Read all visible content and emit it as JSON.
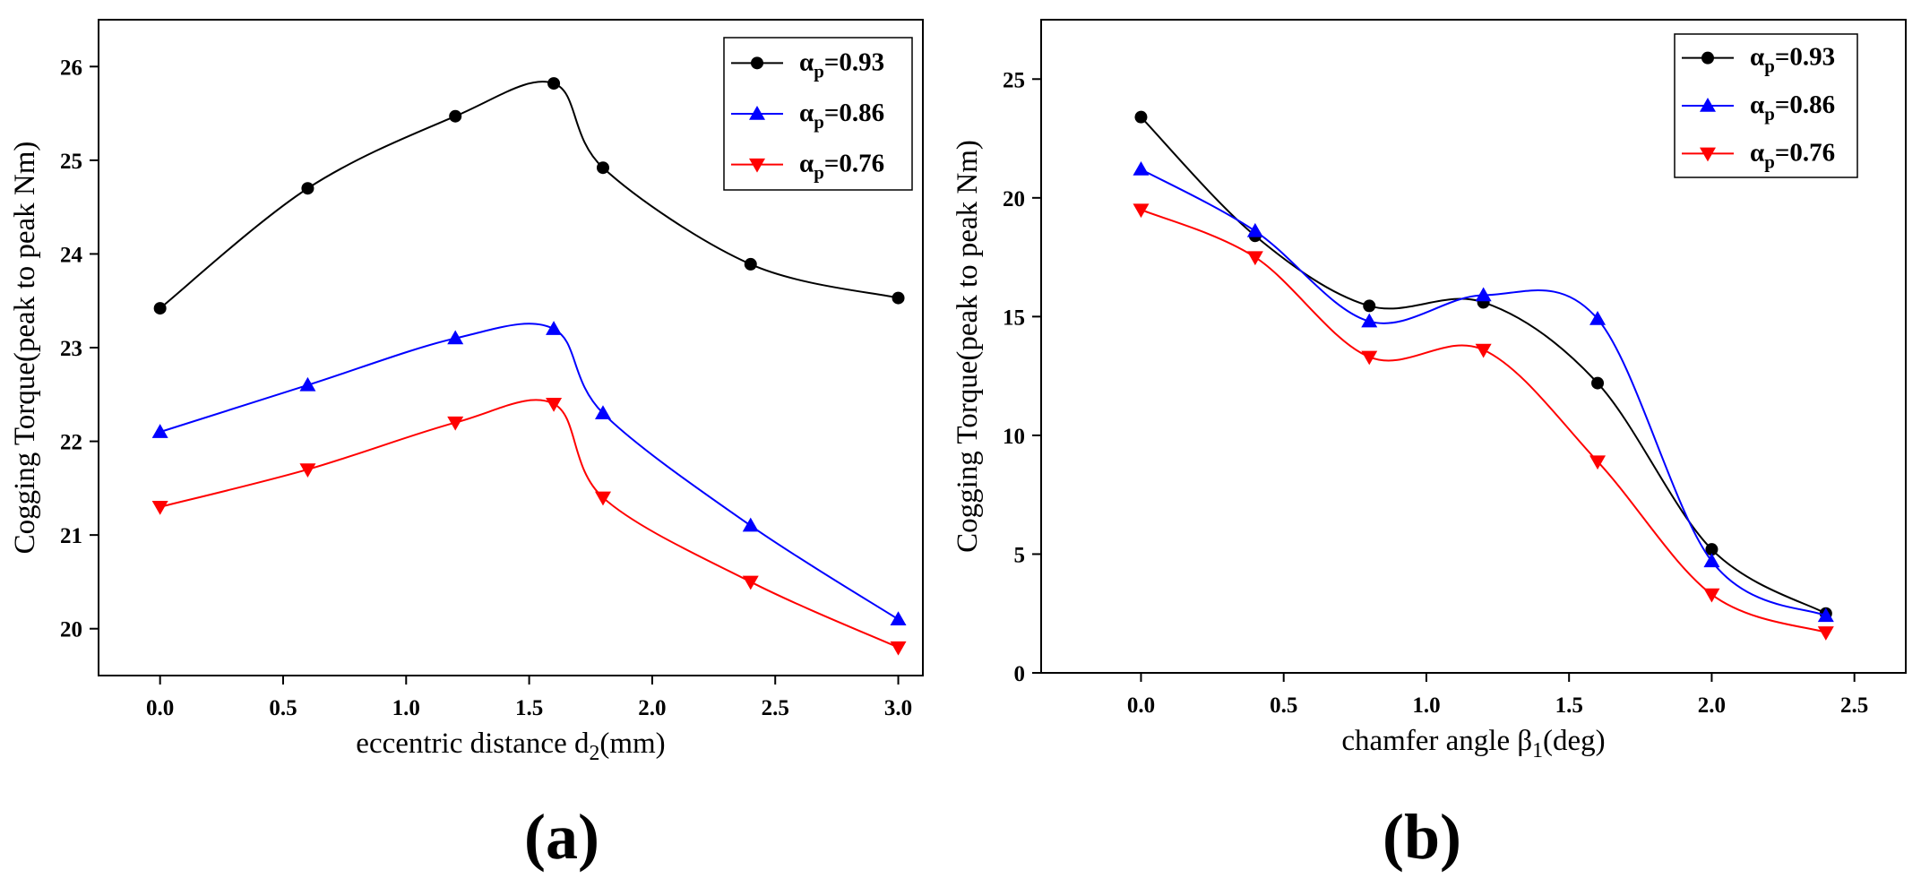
{
  "chart_data": [
    {
      "type": "line",
      "panel_label": "(a)",
      "xlabel": {
        "main": "eccentric distance d",
        "sub": "2",
        "tail": "(mm)"
      },
      "ylabel": "Cogging Torque(peak to peak Nm)",
      "xlim": [
        -0.25,
        3.1
      ],
      "ylim": [
        19.5,
        26.5
      ],
      "xticks": [
        0.0,
        0.5,
        1.0,
        1.5,
        2.0,
        2.5,
        3.0
      ],
      "xtick_labels": [
        "0.0",
        "0.5",
        "1.0",
        "1.5",
        "2.0",
        "2.5",
        "3.0"
      ],
      "yticks": [
        20,
        21,
        22,
        23,
        24,
        25,
        26
      ],
      "ytick_labels": [
        "20",
        "21",
        "22",
        "23",
        "24",
        "25",
        "26"
      ],
      "legend_position": "top-right",
      "series": [
        {
          "name": "α_p=0.93",
          "legend": {
            "main": "α",
            "sub": "p",
            "tail": "=0.93"
          },
          "color": "#000000",
          "marker": "circle",
          "x": [
            0,
            0.6,
            1.2,
            1.6,
            1.8,
            2.4,
            3.0
          ],
          "y": [
            23.42,
            24.7,
            25.47,
            25.82,
            24.92,
            23.89,
            23.53
          ]
        },
        {
          "name": "α_p=0.86",
          "legend": {
            "main": "α",
            "sub": "p",
            "tail": "=0.86"
          },
          "color": "#0000ff",
          "marker": "triangle-up",
          "x": [
            0,
            0.6,
            1.2,
            1.6,
            1.8,
            2.4,
            3.0
          ],
          "y": [
            22.1,
            22.6,
            23.1,
            23.2,
            22.3,
            21.1,
            20.1
          ]
        },
        {
          "name": "α_p=0.76",
          "legend": {
            "main": "α",
            "sub": "p",
            "tail": "=0.76"
          },
          "color": "#ff0000",
          "marker": "triangle-down",
          "x": [
            0,
            0.6,
            1.2,
            1.6,
            1.8,
            2.4,
            3.0
          ],
          "y": [
            21.3,
            21.7,
            22.2,
            22.4,
            21.4,
            20.5,
            19.8
          ]
        }
      ]
    },
    {
      "type": "line",
      "panel_label": "(b)",
      "xlabel": {
        "main": "chamfer angle β",
        "sub": "1",
        "tail": "(deg)"
      },
      "ylabel": "Cogging Torque(peak to peak Nm)",
      "xlim": [
        -0.35,
        2.68
      ],
      "ylim": [
        0,
        27.5
      ],
      "xticks": [
        0.0,
        0.5,
        1.0,
        1.5,
        2.0,
        2.5
      ],
      "xtick_labels": [
        "0.0",
        "0.5",
        "1.0",
        "1.5",
        "2.0",
        "2.5"
      ],
      "yticks": [
        0,
        5,
        10,
        15,
        20,
        25
      ],
      "ytick_labels": [
        "0",
        "5",
        "10",
        "15",
        "20",
        "25"
      ],
      "legend_position": "top-right",
      "series": [
        {
          "name": "α_p=0.93",
          "legend": {
            "main": "α",
            "sub": "p",
            "tail": "=0.93"
          },
          "color": "#000000",
          "marker": "circle",
          "x": [
            0,
            0.4,
            0.8,
            1.2,
            1.6,
            2.0,
            2.4
          ],
          "y": [
            23.4,
            18.4,
            15.45,
            15.6,
            12.2,
            5.2,
            2.5
          ]
        },
        {
          "name": "α_p=0.86",
          "legend": {
            "main": "α",
            "sub": "p",
            "tail": "=0.86"
          },
          "color": "#0000ff",
          "marker": "triangle-up",
          "x": [
            0,
            0.4,
            0.8,
            1.2,
            1.6,
            2.0,
            2.4
          ],
          "y": [
            21.2,
            18.6,
            14.8,
            15.9,
            14.9,
            4.7,
            2.4
          ]
        },
        {
          "name": "α_p=0.76",
          "legend": {
            "main": "α",
            "sub": "p",
            "tail": "=0.76"
          },
          "color": "#ff0000",
          "marker": "triangle-down",
          "x": [
            0,
            0.4,
            0.8,
            1.2,
            1.6,
            2.0,
            2.4
          ],
          "y": [
            19.5,
            17.5,
            13.3,
            13.6,
            8.9,
            3.3,
            1.7
          ]
        }
      ]
    }
  ]
}
